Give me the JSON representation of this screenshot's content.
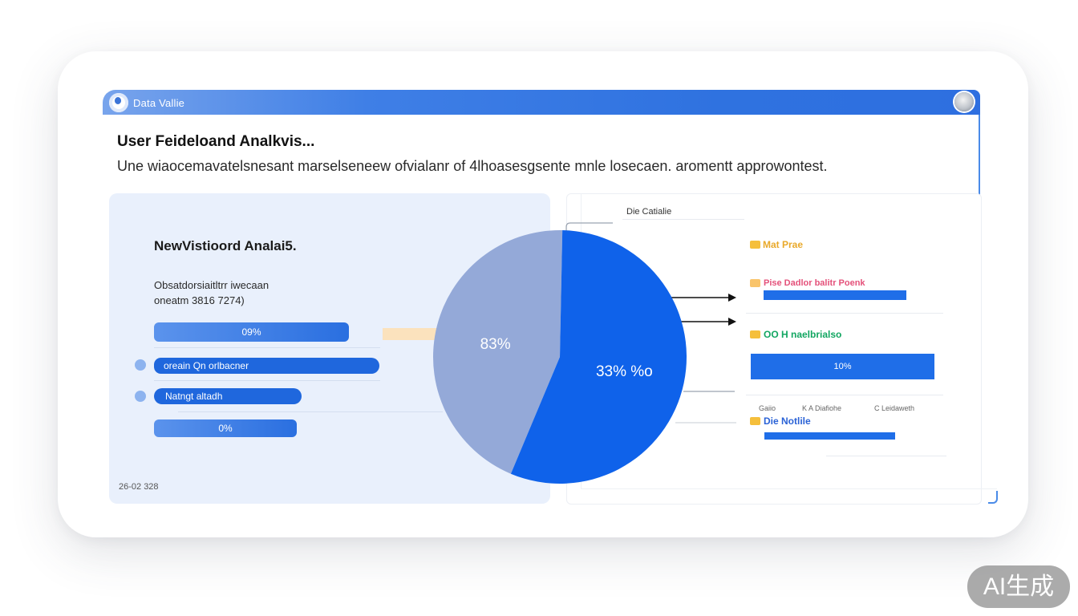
{
  "window": {
    "title": "Data Vallie",
    "logo_icon": "app-logo-icon",
    "avatar_icon": "user-avatar-icon",
    "accent": "#2f72e0"
  },
  "header": {
    "title": "User Feideloand Analkvis...",
    "subtitle": "Une wiaocemavatelsnesant marselseneew ofvialanr of 4lhoasesgsente mnle losecaen. aromentt approwontest."
  },
  "left_panel": {
    "title": "NewVistioord Analai5.",
    "sub_line1": "Obsatdorsiaitltrr iwecaan",
    "sub_line2": "oneatm 3816 7274)",
    "bars": [
      {
        "label": "09%",
        "value": 0.45
      },
      {
        "label": "oreain Qn orlbacner",
        "value": 0.52
      },
      {
        "label": "Natngt altadh",
        "value": 0.34
      },
      {
        "label": "0%",
        "value": 0.33
      }
    ],
    "date": "26-02 328"
  },
  "chart_data": {
    "type": "pie",
    "slices": [
      {
        "label": "83%",
        "value": 44,
        "color": "#94a9d8"
      },
      {
        "label": "33% %o",
        "value": 56,
        "color": "#0f62ea"
      }
    ]
  },
  "right_panel": {
    "title": "Die Catialie",
    "legend": [
      {
        "label": "Mat Prae",
        "color": "#f5bf3c",
        "text_color": "#e9a92a",
        "bar": null
      },
      {
        "label": "Pise Dadlor balitr Poenk",
        "color": "#f9c46b",
        "text_color": "#e4517a",
        "bar": {
          "value": 0.35,
          "label": ""
        }
      },
      {
        "label": "OO H naelbrialso",
        "color": "#f5bf3c",
        "text_color": "#12a661",
        "bar": {
          "value": 0.45,
          "label": "10%"
        }
      },
      {
        "label": "Die Notlile",
        "color": "#f5bf3c",
        "text_color": "#2a62d6",
        "bar": {
          "value": 0.32,
          "label": ""
        }
      }
    ],
    "tiny_labels": [
      "Gaiio",
      "K A Diafiohe",
      "C Leidaweth"
    ]
  },
  "badge": "AI生成"
}
